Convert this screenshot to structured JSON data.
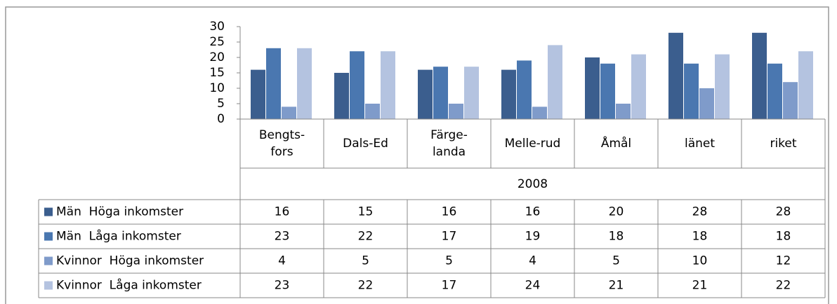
{
  "chart_data": {
    "type": "bar",
    "categories": [
      "Bengts-\nfors",
      "Dals-Ed",
      "Färge-\nlanda",
      "Melle-rud",
      "Åmål",
      "länet",
      "riket"
    ],
    "xlabel": "2008",
    "series": [
      {
        "name": "Män  Höga inkomster",
        "color": "#3b5e8e",
        "values": [
          16,
          15,
          16,
          16,
          20,
          28,
          28
        ]
      },
      {
        "name": "Män  Låga inkomster",
        "color": "#4a77b0",
        "values": [
          23,
          22,
          17,
          19,
          18,
          18,
          18
        ]
      },
      {
        "name": "Kvinnor  Höga inkomster",
        "color": "#7f9bca",
        "values": [
          4,
          5,
          5,
          4,
          5,
          10,
          12
        ]
      },
      {
        "name": "Kvinnor  Låga inkomster",
        "color": "#b4c3e0",
        "values": [
          23,
          22,
          17,
          24,
          21,
          21,
          22
        ]
      }
    ],
    "ylim": [
      0,
      30
    ],
    "yticks": [
      0,
      5,
      10,
      15,
      20,
      25,
      30
    ],
    "grid": false
  }
}
